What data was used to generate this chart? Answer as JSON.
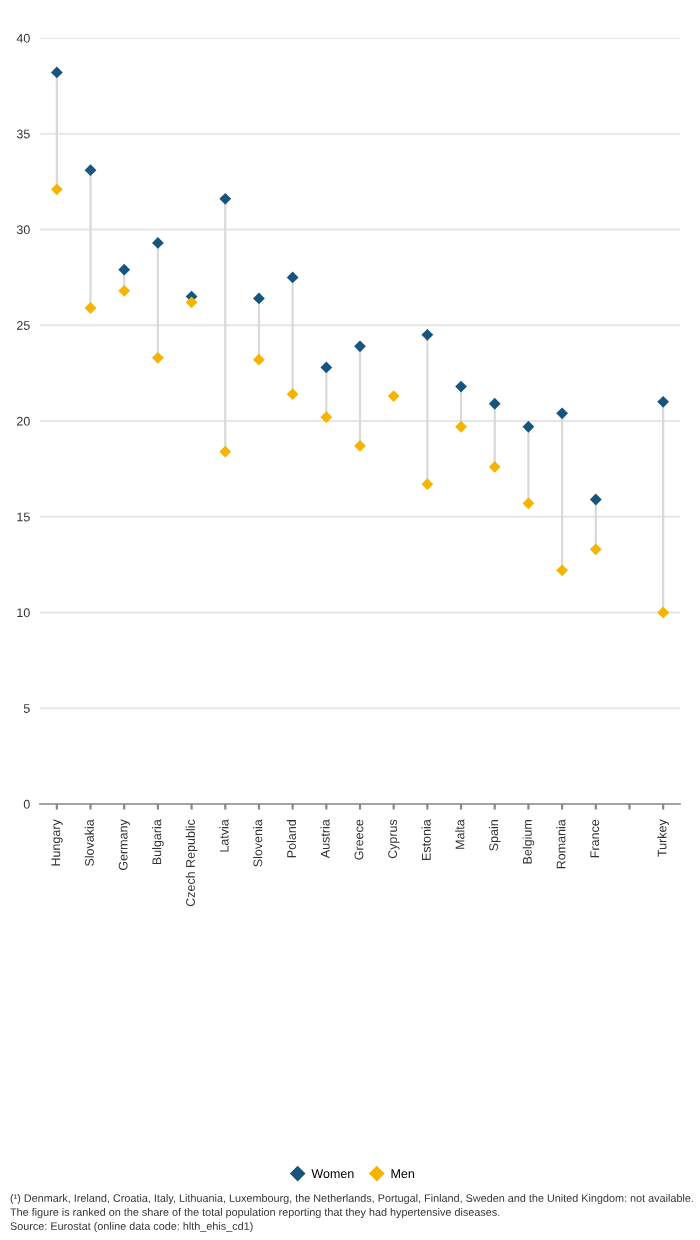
{
  "chart_data": {
    "type": "scatter",
    "categories": [
      "Hungary",
      "Slovakia",
      "Germany",
      "Bulgaria",
      "Czech Republic",
      "Latvia",
      "Slovenia",
      "Poland",
      "Austria",
      "Greece",
      "Cyprus",
      "Estonia",
      "Malta",
      "Spain",
      "Belgium",
      "Romania",
      "France",
      null,
      "Turkey"
    ],
    "series": [
      {
        "name": "Women",
        "color": "#17557f",
        "values": [
          38.2,
          33.1,
          27.9,
          29.3,
          26.5,
          31.6,
          26.4,
          27.5,
          22.8,
          23.9,
          null,
          24.5,
          21.8,
          20.9,
          19.7,
          20.4,
          15.9,
          null,
          21.0
        ]
      },
      {
        "name": "Men",
        "color": "#f5b400",
        "values": [
          32.1,
          25.9,
          26.8,
          23.3,
          26.2,
          18.4,
          23.2,
          21.4,
          20.2,
          18.7,
          21.3,
          16.7,
          19.7,
          17.6,
          15.7,
          12.2,
          13.3,
          null,
          10.0
        ]
      }
    ],
    "ylim": [
      0,
      40
    ],
    "yticks": [
      0,
      5,
      10,
      15,
      20,
      25,
      30,
      35,
      40
    ],
    "grid": "y",
    "legend": "bottom",
    "marker": "diamond",
    "annotations": [
      "(¹) Denmark, Ireland, Croatia, Italy, Lithuania, Luxembourg, the Netherlands, Portugal, Finland, Sweden and the United Kingdom: not available.",
      "The figure is ranked on the share of the total population reporting that they had hypertensive diseases.",
      "Source: Eurostat (online data code: hlth_ehis_cd1)"
    ]
  }
}
